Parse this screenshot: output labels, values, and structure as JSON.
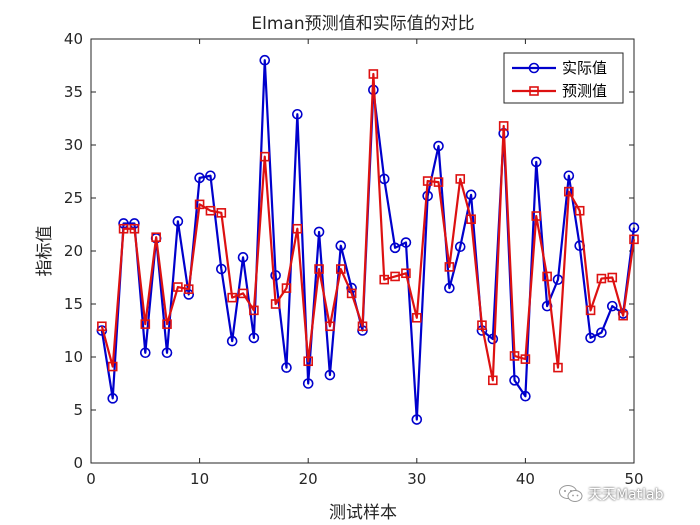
{
  "chart_data": {
    "type": "line",
    "title": "Elman预测值和实际值的对比",
    "xlabel": "测试样本",
    "ylabel": "指标值",
    "xlim": [
      0,
      50
    ],
    "ylim": [
      0,
      40
    ],
    "xticks": [
      0,
      10,
      20,
      30,
      40,
      50
    ],
    "yticks": [
      0,
      5,
      10,
      15,
      20,
      25,
      30,
      35,
      40
    ],
    "grid": false,
    "legend_position": "top-right",
    "x": [
      1,
      2,
      3,
      4,
      5,
      6,
      7,
      8,
      9,
      10,
      11,
      12,
      13,
      14,
      15,
      16,
      17,
      18,
      19,
      20,
      21,
      22,
      23,
      24,
      25,
      26,
      27,
      28,
      29,
      30,
      31,
      32,
      33,
      34,
      35,
      36,
      37,
      38,
      39,
      40,
      41,
      42,
      43,
      44,
      45,
      46,
      47,
      48,
      49,
      50
    ],
    "series": [
      {
        "name": "实际值",
        "color": "#0000cc",
        "marker": "circle",
        "values": [
          12.5,
          6.1,
          22.6,
          22.6,
          10.4,
          21.2,
          10.4,
          22.8,
          15.9,
          26.9,
          27.1,
          18.3,
          11.5,
          19.4,
          11.8,
          38.0,
          17.7,
          9.0,
          32.9,
          7.5,
          21.8,
          8.3,
          20.5,
          16.5,
          12.5,
          35.2,
          26.8,
          20.3,
          20.8,
          4.1,
          25.2,
          29.9,
          16.5,
          20.4,
          25.3,
          12.5,
          11.7,
          31.1,
          7.8,
          6.3,
          28.4,
          14.8,
          17.3,
          27.1,
          20.5,
          11.8,
          12.3,
          14.8,
          14.1,
          22.2
        ]
      },
      {
        "name": "预测值",
        "color": "#dd1111",
        "marker": "square",
        "values": [
          12.9,
          9.1,
          22.1,
          22.1,
          13.1,
          21.3,
          13.1,
          16.6,
          16.4,
          24.4,
          23.8,
          23.6,
          15.6,
          16.0,
          14.4,
          28.9,
          15.0,
          16.5,
          22.1,
          9.6,
          18.3,
          12.9,
          18.3,
          16.0,
          12.9,
          36.7,
          17.3,
          17.6,
          17.9,
          13.7,
          26.6,
          26.5,
          18.5,
          26.8,
          23.0,
          13.0,
          7.8,
          31.8,
          10.1,
          9.8,
          23.3,
          17.6,
          9.0,
          25.6,
          23.8,
          14.4,
          17.4,
          17.5,
          13.9,
          21.1
        ]
      }
    ]
  },
  "watermark": {
    "text": "天天Matlab",
    "icon": "wechat-icon"
  }
}
